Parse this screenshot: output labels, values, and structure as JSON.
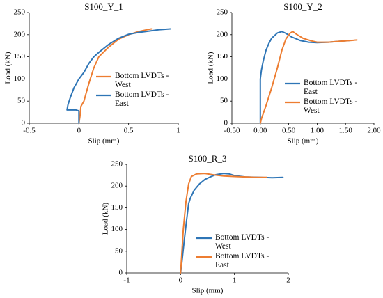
{
  "chart_data": [
    {
      "type": "line",
      "title": "S100_Y_1",
      "xlabel": "Slip (mm)",
      "ylabel": "Load (kN)",
      "xlim": [
        -0.5,
        1
      ],
      "ylim": [
        0,
        250
      ],
      "xticks": [
        -0.5,
        0,
        0.5,
        1
      ],
      "xtick_labels": [
        "-0.5",
        "0",
        "0.5",
        "1"
      ],
      "yticks": [
        0,
        50,
        100,
        150,
        200,
        250
      ],
      "ytick_labels": [
        "0",
        "50",
        "100",
        "150",
        "200",
        "250"
      ],
      "grid": false,
      "legend_position": "center-right",
      "series": [
        {
          "name": "Bottom LVDTs - West",
          "color": "#ED7D31",
          "points": [
            [
              0.0,
              0
            ],
            [
              0.01,
              15
            ],
            [
              0.02,
              38
            ],
            [
              0.05,
              50
            ],
            [
              0.1,
              90
            ],
            [
              0.15,
              125
            ],
            [
              0.2,
              150
            ],
            [
              0.3,
              172
            ],
            [
              0.4,
              190
            ],
            [
              0.5,
              200
            ],
            [
              0.6,
              207
            ],
            [
              0.7,
              212
            ],
            [
              0.73,
              213
            ]
          ]
        },
        {
          "name": "Bottom LVDTs - East",
          "color": "#2E75B6",
          "points": [
            [
              0.0,
              0
            ],
            [
              0.0,
              28
            ],
            [
              -0.03,
              30
            ],
            [
              -0.12,
              30
            ],
            [
              -0.11,
              42
            ],
            [
              -0.09,
              56
            ],
            [
              -0.05,
              80
            ],
            [
              0.0,
              100
            ],
            [
              0.05,
              115
            ],
            [
              0.1,
              135
            ],
            [
              0.15,
              150
            ],
            [
              0.2,
              160
            ],
            [
              0.3,
              178
            ],
            [
              0.4,
              192
            ],
            [
              0.5,
              201
            ],
            [
              0.6,
              205
            ],
            [
              0.7,
              208
            ],
            [
              0.8,
              211
            ],
            [
              0.92,
              213
            ]
          ]
        }
      ]
    },
    {
      "type": "line",
      "title": "S100_Y_2",
      "xlabel": "Slip (mm)",
      "ylabel": "Load (kN)",
      "xlim": [
        -0.5,
        2
      ],
      "ylim": [
        0,
        250
      ],
      "xticks": [
        -0.5,
        0,
        0.5,
        1,
        1.5,
        2
      ],
      "xtick_labels": [
        "-0.50",
        "0.00",
        "0.50",
        "1.00",
        "1.50",
        "2.00"
      ],
      "yticks": [
        0,
        50,
        100,
        150,
        200,
        250
      ],
      "ytick_labels": [
        "0",
        "50",
        "100",
        "150",
        "200",
        "250"
      ],
      "grid": false,
      "legend_position": "center-right",
      "series": [
        {
          "name": "Bottom LVDTs - East",
          "color": "#2E75B6",
          "points": [
            [
              0.0,
              0
            ],
            [
              0.0,
              100
            ],
            [
              0.02,
              120
            ],
            [
              0.05,
              140
            ],
            [
              0.1,
              165
            ],
            [
              0.15,
              180
            ],
            [
              0.2,
              192
            ],
            [
              0.3,
              204
            ],
            [
              0.38,
              207
            ],
            [
              0.45,
              203
            ],
            [
              0.55,
              195
            ],
            [
              0.7,
              187
            ],
            [
              0.85,
              183
            ],
            [
              1.0,
              182
            ],
            [
              1.2,
              183
            ],
            [
              1.4,
              185
            ],
            [
              1.58,
              187
            ]
          ]
        },
        {
          "name": "Bottom LVDTs - West",
          "color": "#ED7D31",
          "points": [
            [
              0.0,
              0
            ],
            [
              0.02,
              10
            ],
            [
              0.1,
              40
            ],
            [
              0.2,
              80
            ],
            [
              0.3,
              125
            ],
            [
              0.38,
              165
            ],
            [
              0.45,
              190
            ],
            [
              0.52,
              203
            ],
            [
              0.57,
              207
            ],
            [
              0.65,
              200
            ],
            [
              0.75,
              192
            ],
            [
              0.9,
              186
            ],
            [
              1.0,
              183
            ],
            [
              1.2,
              183
            ],
            [
              1.4,
              185
            ],
            [
              1.6,
              187
            ],
            [
              1.7,
              188
            ]
          ]
        }
      ]
    },
    {
      "type": "line",
      "title": "S100_R_3",
      "xlabel": "Slip (mm)",
      "ylabel": "Load (kN)",
      "xlim": [
        -1,
        2
      ],
      "ylim": [
        0,
        250
      ],
      "xticks": [
        -1,
        0,
        1,
        2
      ],
      "xtick_labels": [
        "-1",
        "0",
        "1",
        "2"
      ],
      "yticks": [
        0,
        50,
        100,
        150,
        200,
        250
      ],
      "ytick_labels": [
        "0",
        "50",
        "100",
        "150",
        "200",
        "250"
      ],
      "grid": false,
      "legend_position": "lower-right",
      "series": [
        {
          "name": "Bottom LVDTs - West",
          "color": "#2E75B6",
          "points": [
            [
              0.0,
              0
            ],
            [
              0.02,
              20
            ],
            [
              0.05,
              55
            ],
            [
              0.1,
              110
            ],
            [
              0.15,
              160
            ],
            [
              0.18,
              172
            ],
            [
              0.25,
              190
            ],
            [
              0.35,
              205
            ],
            [
              0.45,
              215
            ],
            [
              0.55,
              221
            ],
            [
              0.65,
              226
            ],
            [
              0.8,
              229
            ],
            [
              0.9,
              228
            ],
            [
              1.0,
              224
            ],
            [
              1.2,
              221
            ],
            [
              1.5,
              220
            ],
            [
              1.7,
              219
            ],
            [
              1.9,
              220
            ]
          ]
        },
        {
          "name": "Bottom LVDTs - East",
          "color": "#ED7D31",
          "points": [
            [
              0.0,
              0
            ],
            [
              0.02,
              40
            ],
            [
              0.05,
              100
            ],
            [
              0.1,
              165
            ],
            [
              0.15,
              205
            ],
            [
              0.2,
              222
            ],
            [
              0.3,
              228
            ],
            [
              0.45,
              229
            ],
            [
              0.6,
              226
            ],
            [
              0.8,
              223
            ],
            [
              1.0,
              222
            ],
            [
              1.2,
              221
            ],
            [
              1.4,
              220
            ],
            [
              1.6,
              220
            ]
          ]
        }
      ]
    }
  ]
}
